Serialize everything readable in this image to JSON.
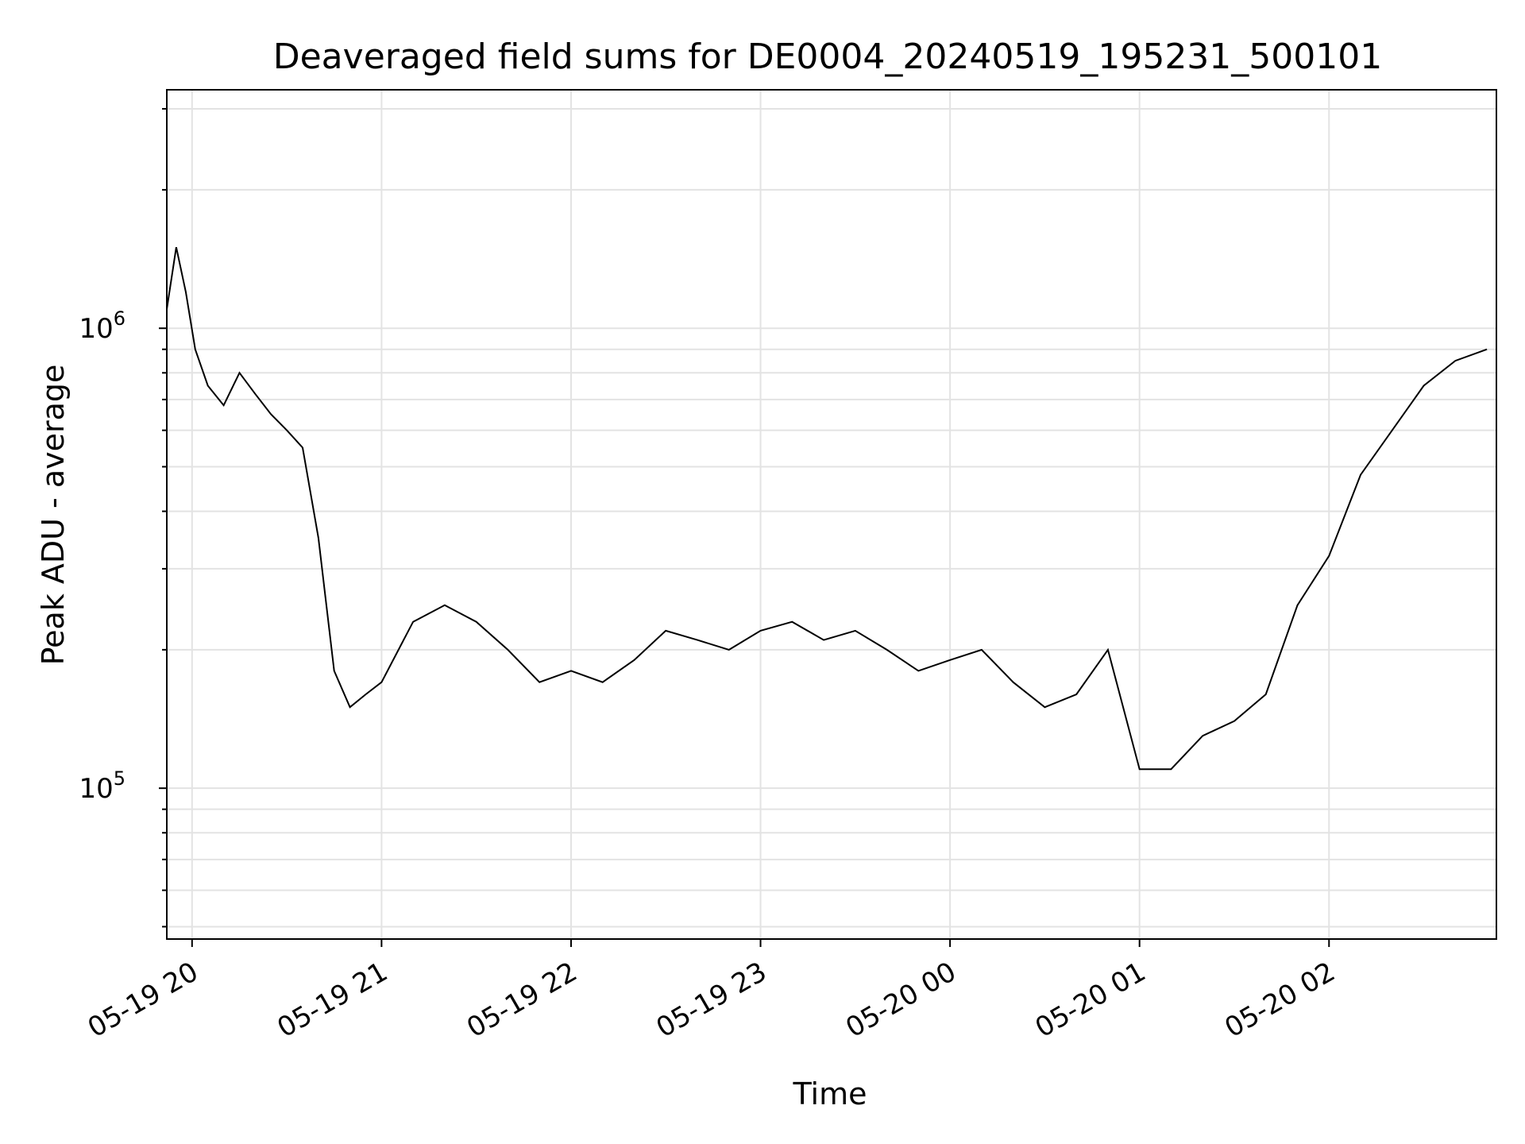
{
  "chart_data": {
    "type": "line",
    "title": "Deaveraged field sums for DE0004_20240519_195231_500101",
    "xlabel": "Time",
    "ylabel": "Peak ADU - average",
    "y_scale": "log",
    "grid": true,
    "line_color": "#000000",
    "xlim": [
      "2024-05-19 19:52",
      "2024-05-20 02:53"
    ],
    "ylim": [
      47000,
      3300000
    ],
    "x_ticks": [
      "05-19 20",
      "05-19 21",
      "05-19 22",
      "05-19 23",
      "05-20 00",
      "05-20 01",
      "05-20 02"
    ],
    "y_ticks": [
      {
        "base": "10",
        "exp": "5"
      },
      {
        "base": "10",
        "exp": "6"
      }
    ],
    "series": [
      {
        "color": "#000000",
        "x": [
          "2024-05-19 19:52",
          "2024-05-19 19:55",
          "2024-05-19 19:58",
          "2024-05-19 20:01",
          "2024-05-19 20:05",
          "2024-05-19 20:10",
          "2024-05-19 20:15",
          "2024-05-19 20:20",
          "2024-05-19 20:25",
          "2024-05-19 20:30",
          "2024-05-19 20:35",
          "2024-05-19 20:40",
          "2024-05-19 20:45",
          "2024-05-19 20:50",
          "2024-05-19 20:55",
          "2024-05-19 21:00",
          "2024-05-19 21:10",
          "2024-05-19 21:20",
          "2024-05-19 21:30",
          "2024-05-19 21:40",
          "2024-05-19 21:50",
          "2024-05-19 22:00",
          "2024-05-19 22:10",
          "2024-05-19 22:20",
          "2024-05-19 22:30",
          "2024-05-19 22:40",
          "2024-05-19 22:50",
          "2024-05-19 23:00",
          "2024-05-19 23:10",
          "2024-05-19 23:20",
          "2024-05-19 23:30",
          "2024-05-19 23:40",
          "2024-05-19 23:50",
          "2024-05-20 00:00",
          "2024-05-20 00:10",
          "2024-05-20 00:20",
          "2024-05-20 00:30",
          "2024-05-20 00:40",
          "2024-05-20 00:50",
          "2024-05-20 01:00",
          "2024-05-20 01:10",
          "2024-05-20 01:20",
          "2024-05-20 01:30",
          "2024-05-20 01:40",
          "2024-05-20 01:50",
          "2024-05-20 02:00",
          "2024-05-20 02:10",
          "2024-05-20 02:20",
          "2024-05-20 02:30",
          "2024-05-20 02:40",
          "2024-05-20 02:50"
        ],
        "values": [
          1100000,
          1500000,
          1200000,
          900000,
          750000,
          680000,
          800000,
          720000,
          650000,
          600000,
          550000,
          350000,
          180000,
          150000,
          160000,
          170000,
          230000,
          250000,
          230000,
          200000,
          170000,
          180000,
          170000,
          190000,
          220000,
          210000,
          200000,
          220000,
          230000,
          210000,
          220000,
          200000,
          180000,
          190000,
          200000,
          170000,
          150000,
          160000,
          200000,
          110000,
          110000,
          130000,
          140000,
          160000,
          250000,
          320000,
          480000,
          600000,
          750000,
          850000,
          900000
        ]
      }
    ]
  }
}
